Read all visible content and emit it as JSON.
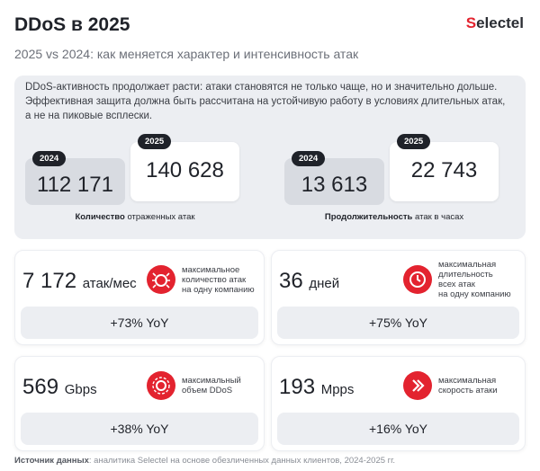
{
  "header": {
    "title": "DDoS в 2025",
    "subtitle": "2025 vs 2024: как меняется характер и интенсивность атак",
    "logo": "Selectel"
  },
  "intro": [
    "DDoS-активность продолжает расти: атаки становятся не только чаще, но и значительно дольше.",
    "Эффективная защита должна быть рассчитана на устойчивую работу в условиях длительных атак,",
    "а не на пиковые всплески."
  ],
  "comparisons": [
    {
      "caption_bold": "Количество",
      "caption_rest": " отраженных атак",
      "items": [
        {
          "year": "2024",
          "value": "112 171"
        },
        {
          "year": "2025",
          "value": "140 628"
        }
      ]
    },
    {
      "caption_bold": "Продолжительность",
      "caption_rest": " атак в часах",
      "items": [
        {
          "year": "2024",
          "value": "13 613"
        },
        {
          "year": "2025",
          "value": "22 743"
        }
      ]
    }
  ],
  "metrics": [
    {
      "value": "7 172",
      "unit": "атак/мес",
      "description": [
        "максимальное",
        "количество атак",
        "на одну компанию"
      ],
      "change": "+73% YoY"
    },
    {
      "value": "36",
      "unit": "дней",
      "description": [
        "максимальная",
        "длительность",
        "всех атак",
        "на одну компанию"
      ],
      "change": "+75% YoY"
    },
    {
      "value": "569",
      "unit": "Gbps",
      "description": [
        "максимальный",
        "объем DDoS"
      ],
      "change": "+38% YoY"
    },
    {
      "value": "193",
      "unit": "Mpps",
      "description": [
        "максимальная",
        "скорость атаки"
      ],
      "change": "+16% YoY"
    }
  ],
  "footer": {
    "label": "Источник данных",
    "text": ": аналитика Selectel на основе обезличенных данных клиентов, 2024-2025 гг."
  }
}
